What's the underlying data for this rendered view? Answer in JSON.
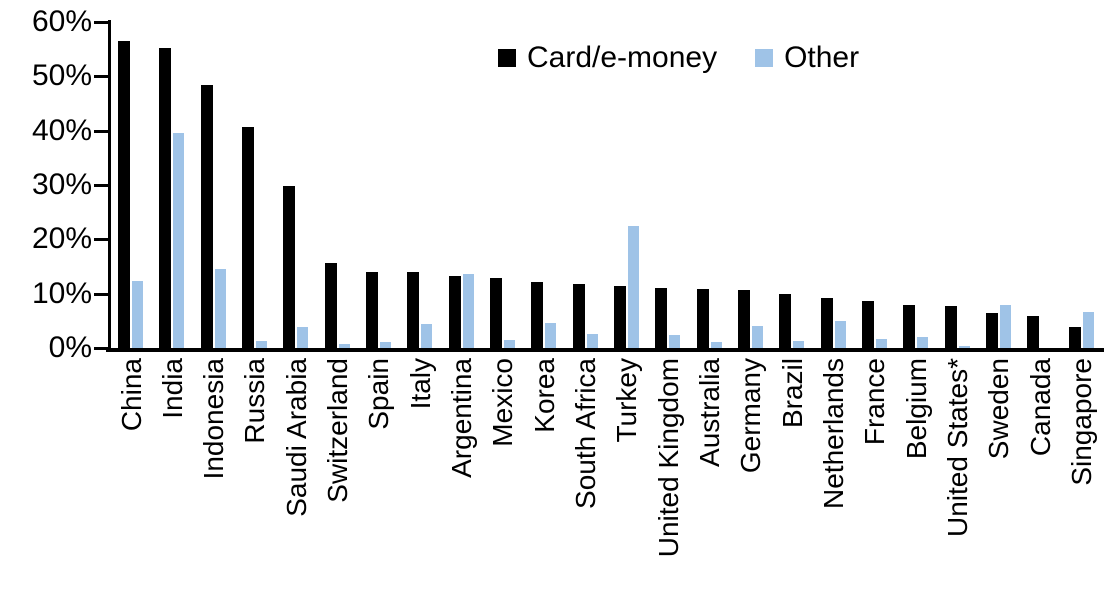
{
  "chart_data": {
    "type": "bar",
    "title": "",
    "legend_position": "top-center",
    "grid": false,
    "ylim": [
      0,
      60
    ],
    "y_tick_step": 10,
    "y_tick_labels": [
      "0%",
      "10%",
      "20%",
      "30%",
      "40%",
      "50%",
      "60%"
    ],
    "value_unit": "%",
    "categories": [
      "China",
      "India",
      "Indonesia",
      "Russia",
      "Saudi Arabia",
      "Switzerland",
      "Spain",
      "Italy",
      "Argentina",
      "Mexico",
      "Korea",
      "South Africa",
      "Turkey",
      "United Kingdom",
      "Australia",
      "Germany",
      "Brazil",
      "Netherlands",
      "France",
      "Belgium",
      "United States*",
      "Sweden",
      "Canada",
      "Singapore"
    ],
    "series": [
      {
        "name": "Card/e-money",
        "color": "#000000",
        "values": [
          56.5,
          55.2,
          48.4,
          40.6,
          29.9,
          15.6,
          14.0,
          14.0,
          13.2,
          12.8,
          12.1,
          11.7,
          11.5,
          11.0,
          10.8,
          10.6,
          10.0,
          9.2,
          8.6,
          8.0,
          7.7,
          6.5,
          5.9,
          3.9
        ]
      },
      {
        "name": "Other",
        "color": "#9FC3E7",
        "values": [
          12.3,
          39.6,
          14.6,
          1.2,
          3.9,
          0.8,
          1.1,
          4.5,
          13.7,
          1.4,
          4.6,
          2.5,
          22.5,
          2.4,
          1.1,
          4.0,
          1.3,
          5.0,
          1.6,
          2.1,
          0.4,
          7.9,
          0,
          6.7
        ]
      }
    ]
  }
}
